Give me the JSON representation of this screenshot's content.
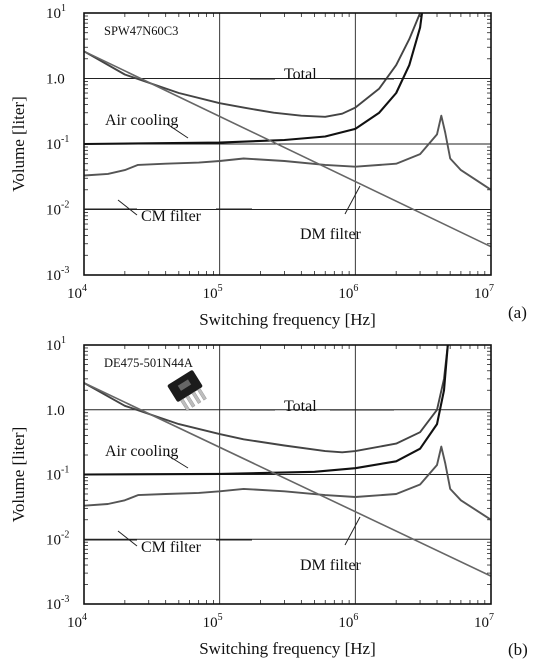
{
  "chart_data": [
    {
      "type": "line",
      "panel_label": "(a)",
      "device_label": "SPW47N60C3",
      "xlabel": "Switching frequency [Hz]",
      "ylabel": "Volume [liter]",
      "x_scale": "log",
      "y_scale": "log",
      "xlim": [
        10000,
        10000000
      ],
      "ylim": [
        0.001,
        10
      ],
      "x_ticks": [
        {
          "base": "10",
          "exp": "4"
        },
        {
          "base": "10",
          "exp": "5"
        },
        {
          "base": "10",
          "exp": "6"
        },
        {
          "base": "10",
          "exp": "7"
        }
      ],
      "y_ticks": [
        {
          "base": "10",
          "exp": "1"
        },
        {
          "text": "1.0"
        },
        {
          "base": "10",
          "exp": "-1"
        },
        {
          "base": "10",
          "exp": "-2"
        },
        {
          "base": "10",
          "exp": "-3"
        }
      ],
      "grid": "decades",
      "series": [
        {
          "name": "Total",
          "color": "#444444",
          "points": [
            [
              10000,
              2.6
            ],
            [
              20000,
              1.15
            ],
            [
              50000,
              0.6
            ],
            [
              100000,
              0.42
            ],
            [
              150000,
              0.36
            ],
            [
              250000,
              0.3
            ],
            [
              400000,
              0.27
            ],
            [
              600000,
              0.26
            ],
            [
              800000,
              0.29
            ],
            [
              1000000,
              0.36
            ],
            [
              1500000,
              0.7
            ],
            [
              2000000,
              1.6
            ],
            [
              2500000,
              4
            ],
            [
              3000000,
              10
            ]
          ]
        },
        {
          "name": "Air cooling",
          "color": "#111111",
          "points": [
            [
              10000,
              0.1
            ],
            [
              100000,
              0.105
            ],
            [
              300000,
              0.115
            ],
            [
              600000,
              0.13
            ],
            [
              1000000,
              0.17
            ],
            [
              1500000,
              0.3
            ],
            [
              2000000,
              0.6
            ],
            [
              2500000,
              1.6
            ],
            [
              3000000,
              6
            ],
            [
              3100000,
              10
            ]
          ]
        },
        {
          "name": "CM filter",
          "color": "#555555",
          "points": [
            [
              10000,
              0.033
            ],
            [
              15000,
              0.035
            ],
            [
              20000,
              0.04
            ],
            [
              25000,
              0.048
            ],
            [
              40000,
              0.05
            ],
            [
              70000,
              0.052
            ],
            [
              100000,
              0.055
            ],
            [
              150000,
              0.06
            ],
            [
              300000,
              0.055
            ],
            [
              600000,
              0.048
            ],
            [
              1000000,
              0.045
            ],
            [
              2000000,
              0.05
            ],
            [
              3000000,
              0.07
            ],
            [
              4000000,
              0.14
            ],
            [
              4300000,
              0.27
            ],
            [
              4600000,
              0.15
            ],
            [
              5000000,
              0.06
            ],
            [
              6000000,
              0.04
            ],
            [
              10000000,
              0.02
            ]
          ]
        },
        {
          "name": "DM filter",
          "color": "#666666",
          "points": [
            [
              10000,
              2.6
            ],
            [
              10000000,
              0.0027
            ]
          ]
        }
      ],
      "annotations": [
        "Total",
        "Air cooling",
        "CM filter",
        "DM filter"
      ]
    },
    {
      "type": "line",
      "panel_label": "(b)",
      "device_label": "DE475-501N44A",
      "xlabel": "Switching frequency [Hz]",
      "ylabel": "Volume [liter]",
      "x_scale": "log",
      "y_scale": "log",
      "xlim": [
        10000,
        10000000
      ],
      "ylim": [
        0.001,
        10
      ],
      "x_ticks": [
        {
          "base": "10",
          "exp": "4"
        },
        {
          "base": "10",
          "exp": "5"
        },
        {
          "base": "10",
          "exp": "6"
        },
        {
          "base": "10",
          "exp": "7"
        }
      ],
      "y_ticks": [
        {
          "base": "10",
          "exp": "1"
        },
        {
          "text": "1.0"
        },
        {
          "base": "10",
          "exp": "-1"
        },
        {
          "base": "10",
          "exp": "-2"
        },
        {
          "base": "10",
          "exp": "-3"
        }
      ],
      "grid": "decades",
      "series": [
        {
          "name": "Total",
          "color": "#444444",
          "points": [
            [
              10000,
              2.6
            ],
            [
              20000,
              1.15
            ],
            [
              50000,
              0.6
            ],
            [
              100000,
              0.42
            ],
            [
              150000,
              0.35
            ],
            [
              300000,
              0.28
            ],
            [
              600000,
              0.23
            ],
            [
              800000,
              0.22
            ],
            [
              1000000,
              0.23
            ],
            [
              2000000,
              0.3
            ],
            [
              3000000,
              0.45
            ],
            [
              4000000,
              1
            ],
            [
              4500000,
              3
            ],
            [
              4800000,
              10
            ]
          ]
        },
        {
          "name": "Air cooling",
          "color": "#111111",
          "points": [
            [
              10000,
              0.1
            ],
            [
              100000,
              0.102
            ],
            [
              500000,
              0.11
            ],
            [
              1000000,
              0.125
            ],
            [
              2000000,
              0.16
            ],
            [
              3000000,
              0.25
            ],
            [
              4000000,
              0.6
            ],
            [
              4500000,
              2
            ],
            [
              4800000,
              10
            ]
          ]
        },
        {
          "name": "CM filter",
          "color": "#555555",
          "points": [
            [
              10000,
              0.033
            ],
            [
              15000,
              0.035
            ],
            [
              20000,
              0.04
            ],
            [
              25000,
              0.048
            ],
            [
              40000,
              0.05
            ],
            [
              70000,
              0.052
            ],
            [
              100000,
              0.055
            ],
            [
              150000,
              0.06
            ],
            [
              300000,
              0.055
            ],
            [
              600000,
              0.048
            ],
            [
              1000000,
              0.045
            ],
            [
              2000000,
              0.05
            ],
            [
              3000000,
              0.07
            ],
            [
              4000000,
              0.14
            ],
            [
              4300000,
              0.27
            ],
            [
              4600000,
              0.15
            ],
            [
              5000000,
              0.06
            ],
            [
              6000000,
              0.04
            ],
            [
              10000000,
              0.02
            ]
          ]
        },
        {
          "name": "DM filter",
          "color": "#666666",
          "points": [
            [
              10000,
              2.6
            ],
            [
              10000000,
              0.0027
            ]
          ]
        }
      ],
      "annotations": [
        "Total",
        "Air cooling",
        "CM filter",
        "DM filter"
      ]
    }
  ]
}
